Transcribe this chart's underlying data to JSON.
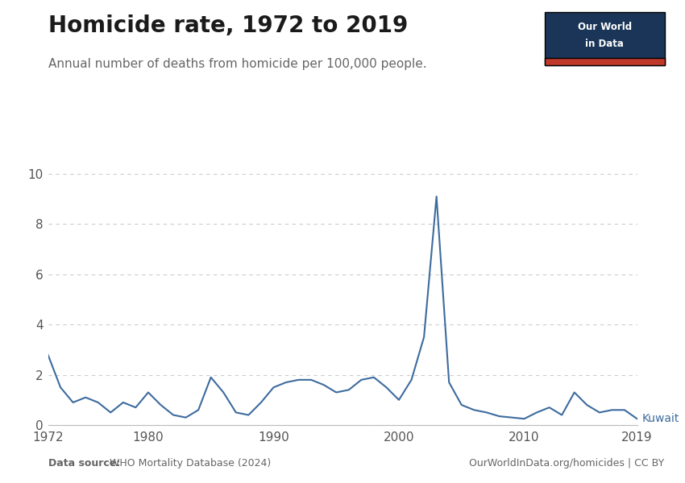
{
  "title": "Homicide rate, 1972 to 2019",
  "subtitle": "Annual number of deaths from homicide per 100,000 people.",
  "datasource_bold": "Data source:",
  "datasource_rest": " WHO Mortality Database (2024)",
  "right_note": "OurWorldInData.org/homicides | CC BY",
  "label": "Kuwait",
  "line_color": "#3d6b9e",
  "background_color": "#ffffff",
  "years": [
    1972,
    1973,
    1974,
    1975,
    1976,
    1977,
    1978,
    1979,
    1980,
    1981,
    1982,
    1983,
    1984,
    1985,
    1986,
    1987,
    1988,
    1989,
    1990,
    1991,
    1992,
    1993,
    1994,
    1995,
    1996,
    1997,
    1998,
    1999,
    2000,
    2001,
    2002,
    2003,
    2004,
    2005,
    2006,
    2007,
    2008,
    2009,
    2010,
    2011,
    2012,
    2013,
    2014,
    2015,
    2016,
    2017,
    2018,
    2019
  ],
  "values": [
    2.8,
    1.5,
    0.9,
    1.1,
    0.9,
    0.5,
    0.9,
    0.7,
    1.3,
    0.8,
    0.4,
    0.3,
    0.6,
    1.9,
    1.3,
    0.5,
    0.4,
    0.9,
    1.5,
    1.7,
    1.8,
    1.8,
    1.6,
    1.3,
    1.4,
    1.8,
    1.9,
    1.5,
    1.0,
    1.8,
    3.5,
    9.1,
    1.7,
    0.8,
    0.6,
    0.5,
    0.35,
    0.3,
    0.25,
    0.5,
    0.7,
    0.4,
    1.3,
    0.8,
    0.5,
    0.6,
    0.6,
    0.25
  ],
  "ylim": [
    0,
    10
  ],
  "yticks": [
    0,
    2,
    4,
    6,
    8,
    10
  ],
  "xlim": [
    1972,
    2019
  ],
  "xticks": [
    1972,
    1980,
    1990,
    2000,
    2010,
    2019
  ],
  "grid_color": "#cccccc",
  "title_fontsize": 20,
  "subtitle_fontsize": 11,
  "tick_fontsize": 11,
  "label_color": "#3d6b9e",
  "owid_box_color": "#1a3558",
  "owid_text_color": "#ffffff",
  "owid_red": "#c0392b",
  "title_color": "#1a1a1a",
  "subtitle_color": "#666666",
  "note_color": "#666666"
}
